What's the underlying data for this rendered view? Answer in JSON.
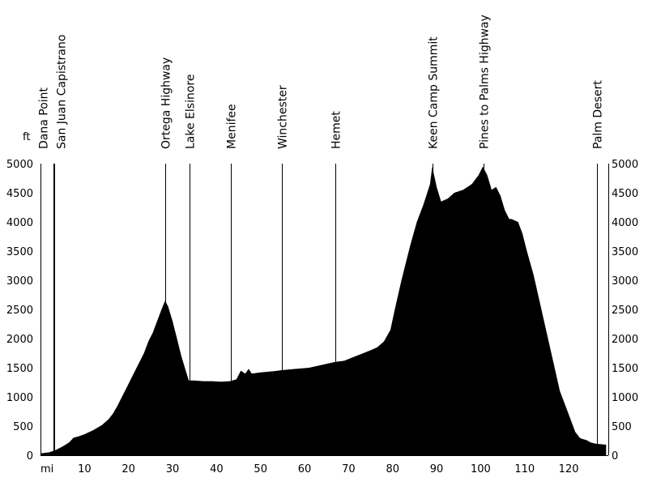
{
  "chart_data": {
    "type": "area",
    "title": "",
    "xlabel": "mi",
    "ylabel": "ft",
    "xlim": [
      0,
      129
    ],
    "ylim": [
      0,
      5000
    ],
    "grid": false,
    "x_ticks": [
      10,
      20,
      30,
      40,
      50,
      60,
      70,
      80,
      90,
      100,
      110,
      120
    ],
    "y_ticks": [
      0,
      500,
      1000,
      1500,
      2000,
      2500,
      3000,
      3500,
      4000,
      4500,
      5000
    ],
    "fill_color": "#000000",
    "series": [
      {
        "x": [
          0,
          2,
          3.5,
          5,
          6.5,
          7.5,
          8.5,
          10,
          12,
          14,
          15.5,
          16.5,
          17.5,
          18.5,
          19.5,
          20.5,
          21.5,
          22.5,
          23.5,
          24.5,
          25.5,
          26.5,
          27.5,
          28.3,
          29,
          30,
          31,
          32,
          33,
          33.7,
          35,
          37,
          39,
          41,
          43,
          44.5,
          45.5,
          46.5,
          47.3,
          48,
          50,
          53,
          55,
          58,
          61,
          64,
          67,
          69,
          71,
          73,
          75,
          76.5,
          78,
          79.5,
          80.5,
          82,
          84,
          85.5,
          87,
          88.5,
          89,
          90,
          91,
          92.5,
          94,
          96,
          98,
          99.5,
          100.5,
          101.5,
          102.5,
          103.5,
          104.5,
          105.5,
          106.5,
          107,
          108.5,
          109.5,
          110.5,
          112,
          113.5,
          115,
          116.5,
          118,
          119.5,
          120.5,
          121.5,
          122.5,
          123,
          124,
          125,
          126,
          127,
          128.5
        ],
        "y": [
          30,
          50,
          90,
          150,
          220,
          300,
          320,
          360,
          430,
          520,
          620,
          720,
          850,
          1000,
          1150,
          1300,
          1450,
          1600,
          1750,
          1950,
          2100,
          2300,
          2500,
          2650,
          2550,
          2300,
          2000,
          1700,
          1450,
          1280,
          1280,
          1270,
          1270,
          1260,
          1270,
          1300,
          1450,
          1400,
          1480,
          1400,
          1420,
          1440,
          1460,
          1480,
          1500,
          1550,
          1600,
          1620,
          1680,
          1740,
          1800,
          1850,
          1950,
          2150,
          2500,
          3000,
          3600,
          4000,
          4300,
          4650,
          4950,
          4600,
          4350,
          4400,
          4500,
          4550,
          4650,
          4800,
          4950,
          4800,
          4550,
          4600,
          4450,
          4200,
          4050,
          4050,
          4000,
          3800,
          3500,
          3100,
          2600,
          2100,
          1600,
          1100,
          800,
          600,
          400,
          300,
          280,
          260,
          220,
          200,
          190,
          180
        ]
      }
    ],
    "waypoints": [
      {
        "name": "Dana Point",
        "x": 3
      },
      {
        "name": "San Juan Capistrano",
        "x": 3.2
      },
      {
        "name": "Ortega Highway",
        "x": 28.3
      },
      {
        "name": "Lake Elsinore",
        "x": 33.8
      },
      {
        "name": "Menifee",
        "x": 43.3
      },
      {
        "name": "Winchester",
        "x": 54.8
      },
      {
        "name": "Hemet",
        "x": 67
      },
      {
        "name": "Keen Camp Summit",
        "x": 89
      },
      {
        "name": "Pines to Palms Highway",
        "x": 100.6
      },
      {
        "name": "Palm Desert",
        "x": 126.5
      }
    ]
  }
}
